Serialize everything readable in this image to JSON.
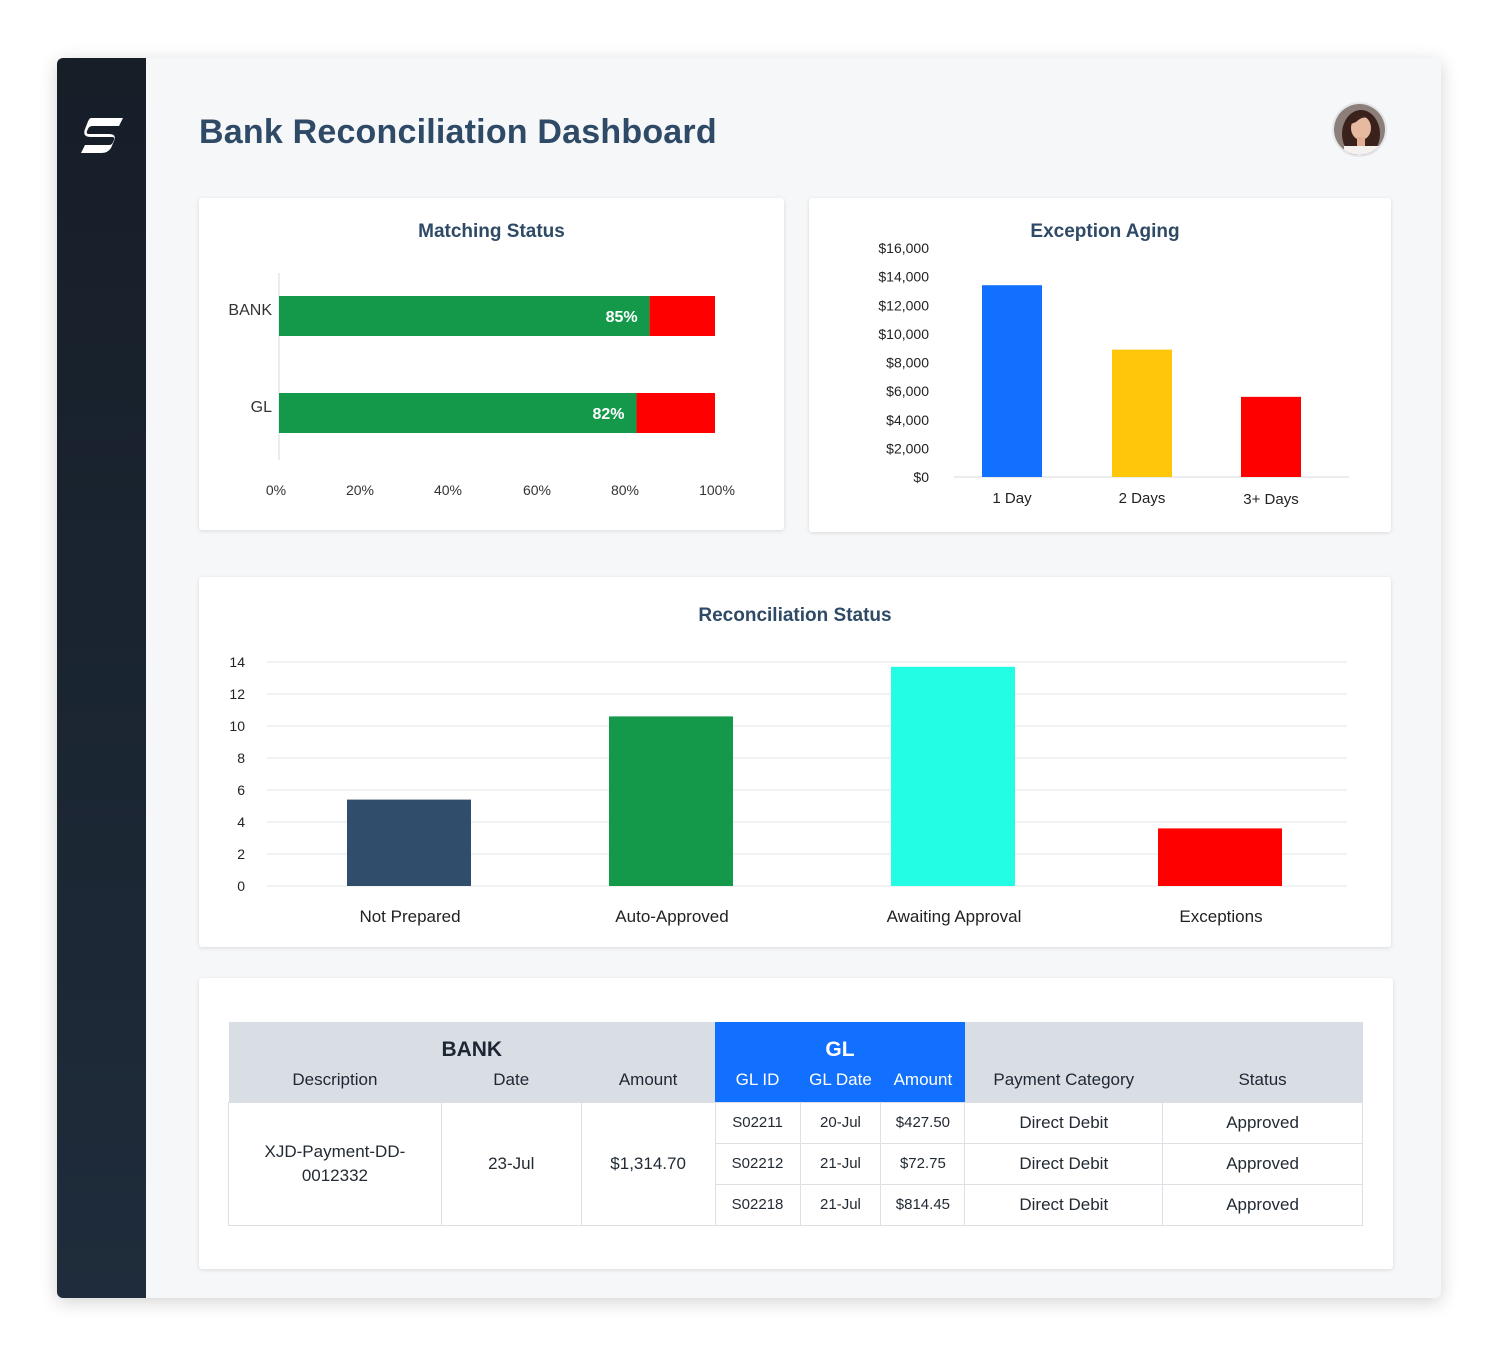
{
  "header": {
    "title": "Bank Reconciliation Dashboard"
  },
  "icons": {
    "logo": "app-logo-icon",
    "avatar": "user-avatar"
  },
  "colors": {
    "green": "#14994a",
    "red": "#ff0000",
    "blue": "#1170ff",
    "yellow": "#ffc60a",
    "navy": "#304d6b",
    "cyan": "#22fde3"
  },
  "matching_status": {
    "title": "Matching Status",
    "chart_data": {
      "type": "bar",
      "orientation": "horizontal",
      "stacked": true,
      "categories": [
        "BANK",
        "GL"
      ],
      "series": [
        {
          "values": [
            85,
            82
          ],
          "labels": [
            "85%",
            "82%"
          ],
          "color": "#14994a"
        },
        {
          "values": [
            15,
            18
          ],
          "color": "#ff0000"
        }
      ],
      "xlim": [
        0,
        100
      ],
      "xticks": [
        "0%",
        "20%",
        "40%",
        "60%",
        "80%",
        "100%"
      ]
    }
  },
  "exception_aging": {
    "title": "Exception Aging",
    "chart_data": {
      "type": "bar",
      "categories": [
        "1 Day",
        "2 Days",
        "3+ Days"
      ],
      "values": [
        13400,
        8900,
        5600
      ],
      "colors": [
        "#1170ff",
        "#ffc60a",
        "#ff0000"
      ],
      "ylim": [
        0,
        16000
      ],
      "yticks": [
        "$0",
        "$2,000",
        "$4,000",
        "$6,000",
        "$8,000",
        "$10,000",
        "$12,000",
        "$14,000",
        "$16,000"
      ]
    }
  },
  "reconciliation_status": {
    "title": "Reconciliation Status",
    "chart_data": {
      "type": "bar",
      "categories": [
        "Not Prepared",
        "Auto-Approved",
        "Awaiting Approval",
        "Exceptions"
      ],
      "values": [
        5.4,
        10.6,
        13.7,
        3.6
      ],
      "colors": [
        "#304d6b",
        "#14994a",
        "#22fde3",
        "#ff0000"
      ],
      "ylim": [
        0,
        14
      ],
      "yticks": [
        "0",
        "2",
        "4",
        "6",
        "8",
        "10",
        "12",
        "14"
      ],
      "grid": true
    }
  },
  "table": {
    "bank_header": "BANK",
    "gl_header": "GL",
    "columns": {
      "description": "Description",
      "date": "Date",
      "amount": "Amount",
      "gl_id": "GL ID",
      "gl_date": "GL Date",
      "gl_amount": "Amount",
      "payment_category": "Payment Category",
      "status": "Status"
    },
    "bank_row": {
      "description": "XJD-Payment-DD-0012332",
      "date": "23-Jul",
      "amount": "$1,314.70"
    },
    "gl_rows": [
      {
        "gl_id": "S02211",
        "gl_date": "20-Jul",
        "amount": "$427.50",
        "category": "Direct Debit",
        "status": "Approved"
      },
      {
        "gl_id": "S02212",
        "gl_date": "21-Jul",
        "amount": "$72.75",
        "category": "Direct Debit",
        "status": "Approved"
      },
      {
        "gl_id": "S02218",
        "gl_date": "21-Jul",
        "amount": "$814.45",
        "category": "Direct Debit",
        "status": "Approved"
      }
    ]
  }
}
